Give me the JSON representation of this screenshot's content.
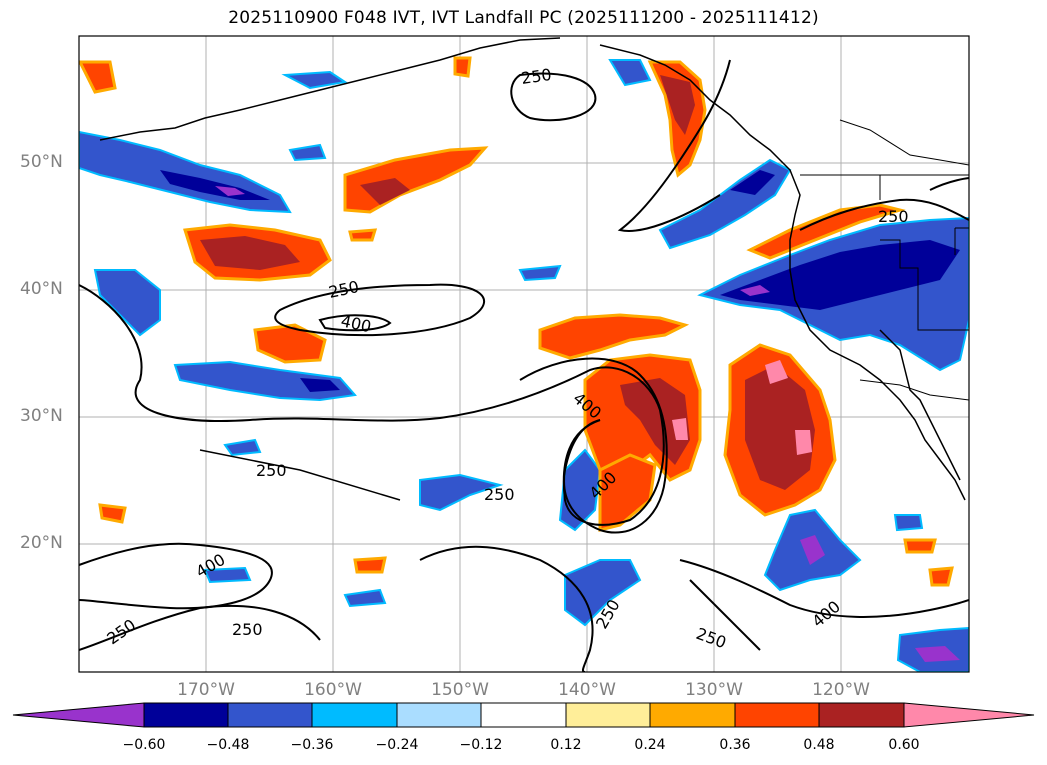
{
  "title": "2025110900 F048 IVT, IVT Landfall PC (2025111200 - 2025111412)",
  "lat_labels": [
    "50°N",
    "40°N",
    "30°N",
    "20°N"
  ],
  "lon_labels": [
    "170°W",
    "160°W",
    "150°W",
    "140°W",
    "130°W",
    "120°W"
  ],
  "contour_labels": [
    "250",
    "250",
    "250",
    "250",
    "250",
    "250",
    "250",
    "250",
    "400",
    "400",
    "400",
    "400",
    "400",
    "250"
  ],
  "colorbar": {
    "ticks": [
      "−0.60",
      "−0.48",
      "−0.36",
      "−0.24",
      "−0.12",
      "0.12",
      "0.24",
      "0.36",
      "0.48",
      "0.60"
    ],
    "colors": [
      "#9933cc",
      "#000099",
      "#3355cc",
      "#00bbff",
      "#aaddff",
      "#ffffff",
      "#ffee99",
      "#ffaa00",
      "#ff4400",
      "#aa2222",
      "#ff88aa"
    ]
  },
  "colors": {
    "neg_extreme": "#9933cc",
    "neg_strong": "#000099",
    "neg_mid": "#3355cc",
    "neg_light": "#00bbff",
    "neg_pale": "#aaddff",
    "pos_pale": "#ffee99",
    "pos_light": "#ffaa00",
    "pos_mid": "#ff4400",
    "pos_strong": "#aa2222",
    "pos_extreme": "#ff88aa",
    "grid": "#b0b0b0",
    "contour": "#000000"
  }
}
